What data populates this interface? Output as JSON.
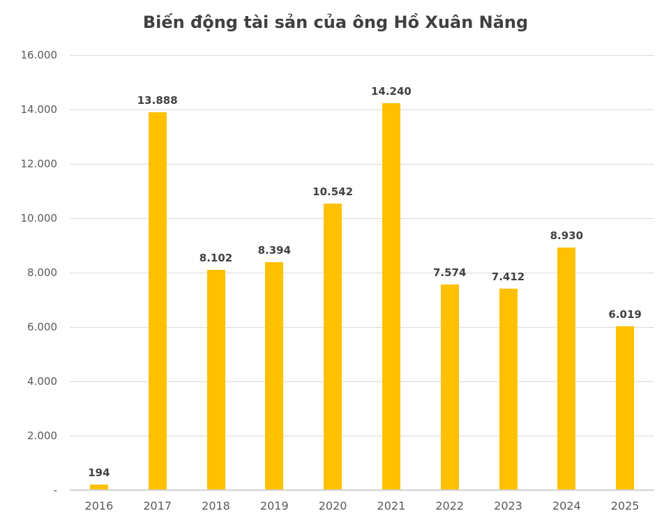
{
  "title": "Biến động tài sản của ông Hồ Xuân Năng",
  "colors": {
    "bar": "#FFC000",
    "gridline": "#D9D9D9",
    "axis_line": "#D2D2D2",
    "title_text": "#404040",
    "data_label_text": "#404040",
    "tick_label_text": "#595959",
    "background": "#FFFFFF"
  },
  "chart_data": {
    "type": "bar",
    "title": "Biến động tài sản của ông Hồ Xuân Năng",
    "categories": [
      "2016",
      "2017",
      "2018",
      "2019",
      "2020",
      "2021",
      "2022",
      "2023",
      "2024",
      "2025"
    ],
    "values": [
      194,
      13888,
      8102,
      8394,
      10542,
      14240,
      7574,
      7412,
      8930,
      6019
    ],
    "value_labels": [
      "194",
      "13.888",
      "8.102",
      "8.394",
      "10.542",
      "14.240",
      "7.574",
      "7.412",
      "8.930",
      "6.019"
    ],
    "xlabel": "",
    "ylabel": "",
    "ylim": [
      0,
      16000
    ],
    "ytick_interval": 2000,
    "ytick_labels_bottom_up": [
      "-",
      "2.000",
      "4.000",
      "6.000",
      "8.000",
      "10.000",
      "12.000",
      "14.000",
      "16.000"
    ],
    "grid": true,
    "legend": false,
    "bar_color": "#FFC000"
  }
}
